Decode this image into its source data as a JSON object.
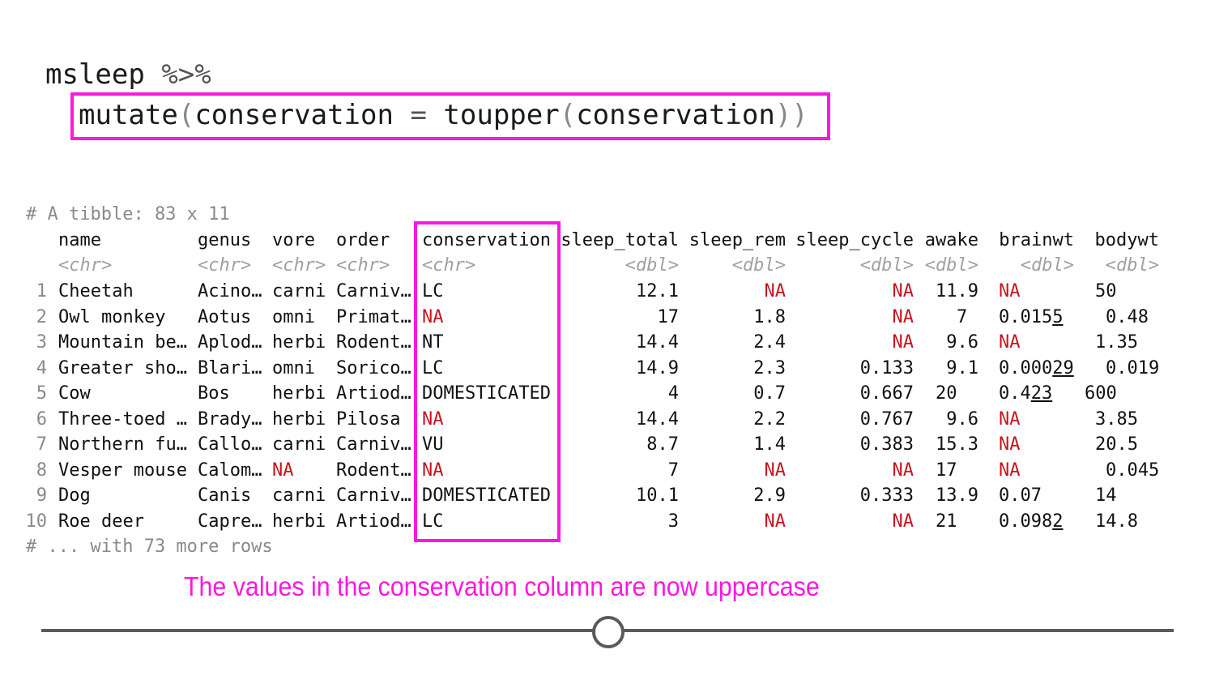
{
  "code": {
    "line1_obj": "msleep",
    "line1_pipe": "%>%",
    "line2_fn": "mutate",
    "line2_open": "(",
    "line2_arg": "conservation",
    "line2_eq": "=",
    "line2_inner_fn": "toupper",
    "line2_inner_open": "(",
    "line2_inner_arg": "conservation",
    "line2_close": "))"
  },
  "tibble": {
    "header_comment": "# A tibble: 83 x 11",
    "footer_comment": "# ... with 73 more rows",
    "columns": [
      "name",
      "genus",
      "vore",
      "order",
      "conservation",
      "sleep_total",
      "sleep_rem",
      "sleep_cycle",
      "awake",
      "brainwt",
      "bodywt"
    ],
    "types": [
      "<chr>",
      "<chr>",
      "<chr>",
      "<chr>",
      "<chr>",
      "<dbl>",
      "<dbl>",
      "<dbl>",
      "<dbl>",
      "<dbl>",
      "<dbl>"
    ],
    "rows": [
      [
        "1",
        "Cheetah",
        "Acino…",
        "carni",
        "Carniv…",
        "LC",
        "12.1",
        "NA",
        "NA",
        "11.9",
        "NA",
        "50"
      ],
      [
        "2",
        "Owl monkey",
        "Aotus",
        "omni",
        "Primat…",
        "NA",
        "17",
        "1.8",
        "NA",
        "7",
        "0.0155",
        "0.48"
      ],
      [
        "3",
        "Mountain be…",
        "Aplod…",
        "herbi",
        "Rodent…",
        "NT",
        "14.4",
        "2.4",
        "NA",
        "9.6",
        "NA",
        "1.35"
      ],
      [
        "4",
        "Greater sho…",
        "Blari…",
        "omni",
        "Sorico…",
        "LC",
        "14.9",
        "2.3",
        "0.133",
        "9.1",
        "0.00029",
        "0.019"
      ],
      [
        "5",
        "Cow",
        "Bos",
        "herbi",
        "Artiod…",
        "DOMESTICATED",
        "4",
        "0.7",
        "0.667",
        "20",
        "0.423",
        "600"
      ],
      [
        "6",
        "Three-toed …",
        "Brady…",
        "herbi",
        "Pilosa",
        "NA",
        "14.4",
        "2.2",
        "0.767",
        "9.6",
        "NA",
        "3.85"
      ],
      [
        "7",
        "Northern fu…",
        "Callo…",
        "carni",
        "Carniv…",
        "VU",
        "8.7",
        "1.4",
        "0.383",
        "15.3",
        "NA",
        "20.5"
      ],
      [
        "8",
        "Vesper mouse",
        "Calom…",
        "NA",
        "Rodent…",
        "NA",
        "7",
        "NA",
        "NA",
        "17",
        "NA",
        "0.045"
      ],
      [
        "9",
        "Dog",
        "Canis",
        "carni",
        "Carniv…",
        "DOMESTICATED",
        "10.1",
        "2.9",
        "0.333",
        "13.9",
        "0.07",
        "14"
      ],
      [
        "10",
        "Roe deer",
        "Capre…",
        "herbi",
        "Artiod…",
        "LC",
        "3",
        "NA",
        "NA",
        "21",
        "0.0982",
        "14.8"
      ]
    ]
  },
  "caption": "The values in the conservation column are now uppercase",
  "colors": {
    "highlight": "#ff16e0",
    "na": "#c8141e",
    "muted": "#8a8a8a"
  }
}
